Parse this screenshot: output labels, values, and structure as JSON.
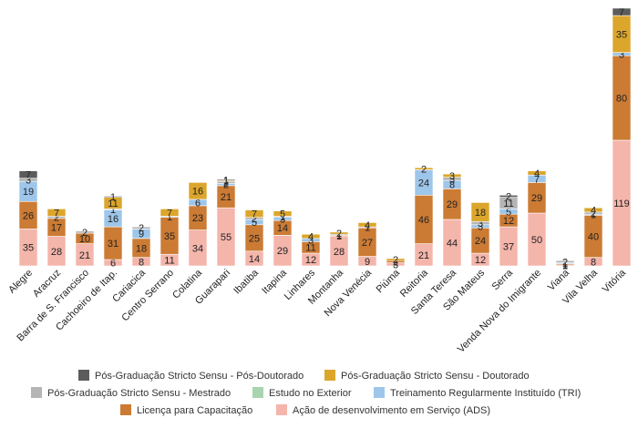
{
  "chart_data": {
    "type": "bar",
    "stacked": true,
    "title": "",
    "xlabel": "",
    "ylabel": "",
    "grid": false,
    "legend_position": "bottom",
    "categories": [
      "Alegre",
      "Aracruz",
      "Barra de S. Francisco",
      "Cachoeiro de Itap.",
      "Cariacica",
      "Centro Serrano",
      "Colatina",
      "Guarapari",
      "Ibatiba",
      "Itapina",
      "Linhares",
      "Montanha",
      "Nova Venécia",
      "Piúma",
      "Reitoria",
      "Santa Teresa",
      "São Mateus",
      "Serra",
      "Venda Nova do Imigrante",
      "Viana",
      "Vila Velha",
      "Vitória"
    ],
    "series": [
      {
        "name": "Ação de desenvolvimento em Serviço (ADS)",
        "color": "#f4b5ab",
        "values": [
          35,
          28,
          21,
          6,
          8,
          11,
          34,
          55,
          14,
          29,
          12,
          28,
          9,
          3,
          21,
          44,
          12,
          37,
          50,
          1,
          8,
          119
        ]
      },
      {
        "name": "Licença para Capacitação",
        "color": "#cc7b34",
        "values": [
          26,
          17,
          10,
          31,
          18,
          35,
          23,
          21,
          25,
          14,
          11,
          1,
          27,
          2,
          46,
          29,
          24,
          12,
          29,
          1,
          40,
          80
        ]
      },
      {
        "name": "Treinamento Regularmente Instituído (TRI)",
        "color": "#9ec6ea",
        "values": [
          19,
          0,
          0,
          16,
          9,
          0,
          6,
          2,
          5,
          3,
          3,
          0,
          0,
          0,
          24,
          8,
          3,
          5,
          7,
          1,
          1,
          3
        ]
      },
      {
        "name": "Estudo no Exterior",
        "color": "#a8d4b0",
        "values": [
          0,
          0,
          0,
          0,
          0,
          0,
          0,
          0,
          0,
          0,
          0,
          0,
          0,
          0,
          0,
          0,
          0,
          0,
          0,
          0,
          0,
          0
        ]
      },
      {
        "name": "Pós-Graduação Stricto Sensu - Mestrado",
        "color": "#b5b5b5",
        "values": [
          3,
          2,
          2,
          1,
          2,
          1,
          0,
          2,
          2,
          1,
          0,
          1,
          1,
          0,
          0,
          3,
          3,
          11,
          0,
          2,
          2,
          0
        ]
      },
      {
        "name": "Pós-Graduação Stricto Sensu - Doutorado",
        "color": "#dca62c",
        "values": [
          0,
          7,
          0,
          11,
          0,
          7,
          16,
          1,
          7,
          5,
          4,
          2,
          4,
          2,
          2,
          3,
          18,
          0,
          4,
          0,
          4,
          35
        ]
      },
      {
        "name": "Pós-Graduação Stricto Sensu - Pós-Doutorado",
        "color": "#5c5c5c",
        "values": [
          7,
          0,
          0,
          1,
          0,
          0,
          0,
          1,
          0,
          0,
          0,
          0,
          0,
          0,
          0,
          0,
          0,
          2,
          0,
          0,
          0,
          7
        ]
      }
    ],
    "legend_order": [
      6,
      5,
      4,
      3,
      2,
      1,
      0
    ]
  }
}
